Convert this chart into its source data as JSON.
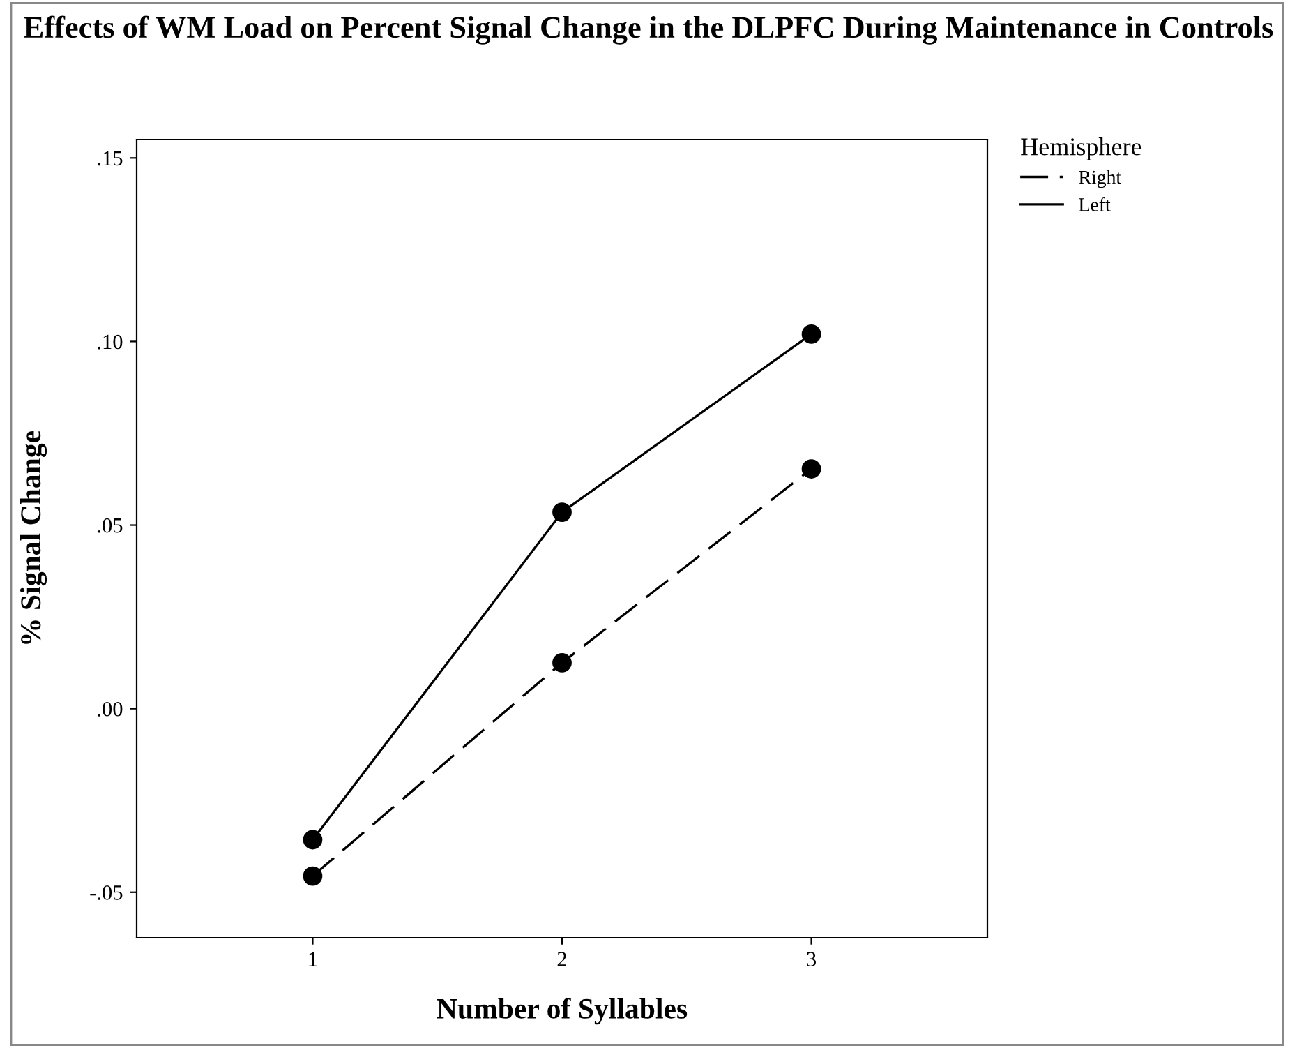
{
  "chart_data": {
    "type": "line",
    "title": "Effects of WM Load on Percent Signal Change in the DLPFC During Maintenance in Controls",
    "xlabel": "Number of Syllables",
    "ylabel": "% Signal Change",
    "legend_title": "Hemisphere",
    "categories": [
      "1",
      "2",
      "3"
    ],
    "series": [
      {
        "name": "Right",
        "color": "#000000",
        "line_style": "dashed",
        "values": [
          -0.0456,
          0.0125,
          0.0653
        ]
      },
      {
        "name": "Left",
        "color": "#000000",
        "line_style": "solid",
        "values": [
          -0.0357,
          0.0535,
          0.102
        ]
      }
    ],
    "ylim": [
      -0.0624,
      0.155
    ],
    "yticks": [
      {
        "value": -0.05,
        "label": "-.05"
      },
      {
        "value": 0,
        "label": ".00"
      },
      {
        "value": 0.05,
        "label": ".05"
      },
      {
        "value": 0.1,
        "label": ".10"
      },
      {
        "value": 0.15,
        "label": ".15"
      }
    ],
    "marker": "circle",
    "grid": false,
    "legend": "top right"
  }
}
